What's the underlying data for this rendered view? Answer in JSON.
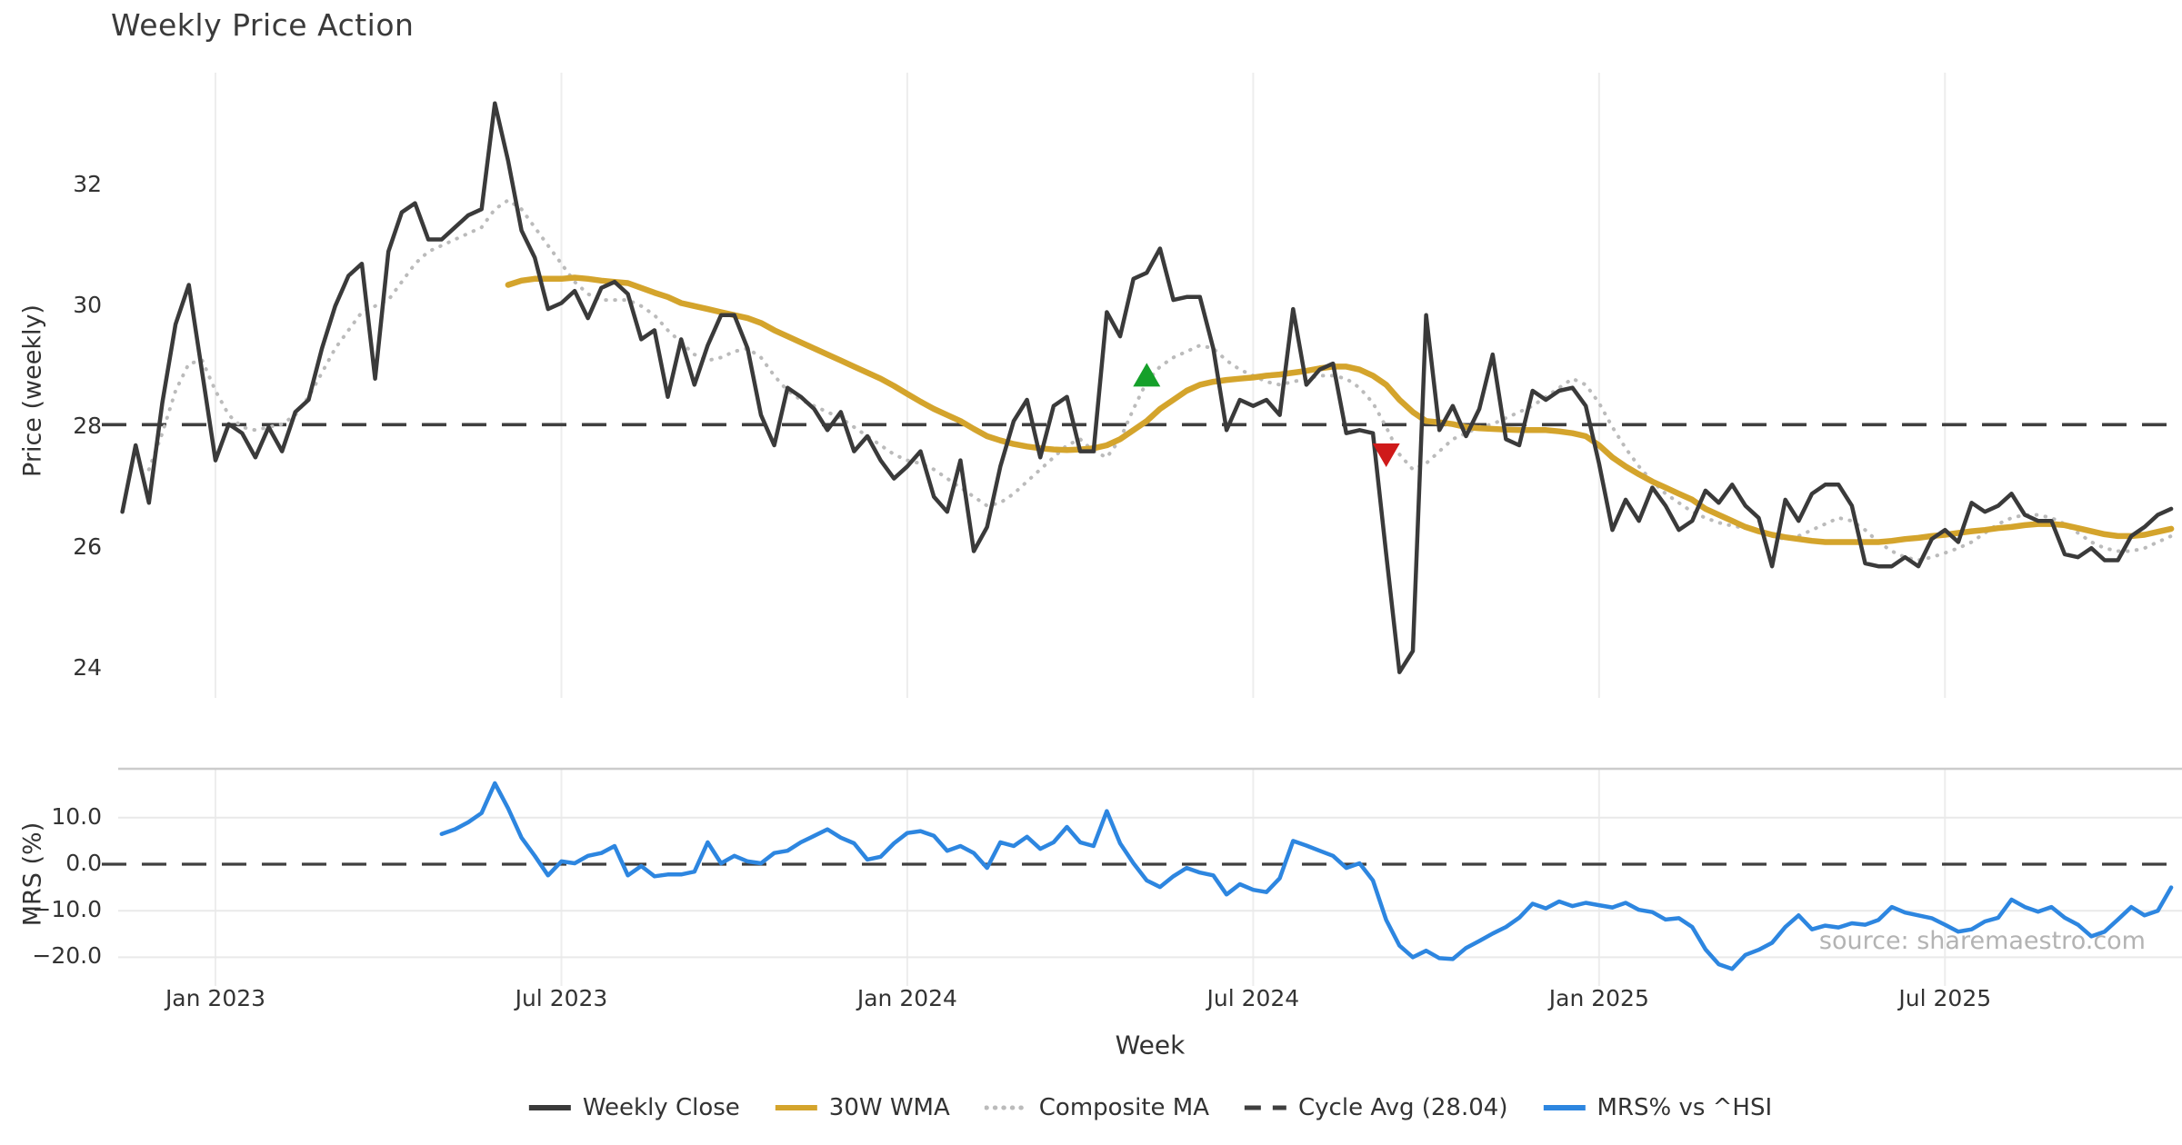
{
  "title": "Weekly Price Action",
  "source_note": "source: sharemaestro.com",
  "axes": {
    "x_label": "Week",
    "price_axis_label": "Price (weekly)",
    "mrs_axis_label": "MRS (%)",
    "price_ticks": [
      {
        "value": 32,
        "label": "32"
      },
      {
        "value": 30,
        "label": "30"
      },
      {
        "value": 28,
        "label": "28"
      },
      {
        "value": 26,
        "label": "26"
      },
      {
        "value": 24,
        "label": "24"
      }
    ],
    "mrs_ticks": [
      {
        "value": 10,
        "label": "10.0"
      },
      {
        "value": 0,
        "label": "0.0"
      },
      {
        "value": -10,
        "label": "−10.0"
      },
      {
        "value": -20,
        "label": "−20.0"
      }
    ],
    "x_ticks": [
      {
        "week": 7,
        "label": "Jan 2023"
      },
      {
        "week": 33,
        "label": "Jul 2023"
      },
      {
        "week": 59,
        "label": "Jan 2024"
      },
      {
        "week": 85,
        "label": "Jul 2024"
      },
      {
        "week": 111,
        "label": "Jan 2025"
      },
      {
        "week": 137,
        "label": "Jul 2025"
      }
    ]
  },
  "legend": {
    "items": [
      {
        "key": "close",
        "label": "Weekly Close"
      },
      {
        "key": "wma",
        "label": "30W WMA"
      },
      {
        "key": "comp",
        "label": "Composite MA"
      },
      {
        "key": "cycle",
        "label": "Cycle Avg (28.04)"
      },
      {
        "key": "mrs",
        "label": "MRS% vs ^HSI"
      }
    ]
  },
  "colors": {
    "weekly_close": "#3a3a3a",
    "wma_30w": "#d4a42c",
    "composite_ma": "#bbbbbb",
    "cycle_avg": "#3f3f3f",
    "mrs": "#2d86e0",
    "marker_buy": "#15a02a",
    "marker_sell": "#cf1a1a",
    "gridline": "#ededed",
    "panel_border": "#cccccc",
    "lower_gridline": "#e9e9e9",
    "tick_text": "#333333",
    "source_text": "#b3b3b3"
  },
  "chart_data": {
    "type": "line",
    "title": "Weekly Price Action",
    "xlabel": "Week",
    "ylabel_top": "Price (weekly)",
    "ylabel_bottom": "MRS (%)",
    "x_unit": "weekly",
    "start_date": "2022-11-14",
    "n_weeks": 155,
    "ylim_price": [
      23.5,
      33.7
    ],
    "ylim_mrs": [
      -26.0,
      20.5
    ],
    "grid": true,
    "legend_position": "bottom",
    "cycle_avg": 28.04,
    "series": [
      {
        "name": "Weekly Close",
        "panel": "price",
        "style": "solid",
        "color": "#3a3a3a",
        "start_week": 0,
        "values": [
          26.6,
          27.7,
          26.75,
          28.4,
          29.7,
          30.35,
          28.9,
          27.45,
          28.05,
          27.9,
          27.5,
          28.0,
          27.6,
          28.25,
          28.45,
          29.3,
          30.0,
          30.5,
          30.7,
          28.8,
          30.9,
          31.55,
          31.7,
          31.1,
          31.1,
          31.3,
          31.5,
          31.6,
          33.35,
          32.4,
          31.25,
          30.8,
          29.95,
          30.05,
          30.25,
          29.8,
          30.3,
          30.4,
          30.2,
          29.45,
          29.6,
          28.5,
          29.45,
          28.7,
          29.35,
          29.85,
          29.85,
          29.3,
          28.2,
          27.7,
          28.65,
          28.5,
          28.3,
          27.95,
          28.25,
          27.6,
          27.85,
          27.45,
          27.15,
          27.35,
          27.6,
          26.85,
          26.6,
          27.45,
          25.95,
          26.35,
          27.35,
          28.1,
          28.45,
          27.5,
          28.35,
          28.5,
          27.6,
          27.6,
          29.9,
          29.5,
          30.45,
          30.55,
          30.95,
          30.1,
          30.15,
          30.15,
          29.3,
          27.95,
          28.45,
          28.35,
          28.45,
          28.2,
          29.95,
          28.7,
          28.95,
          29.05,
          27.9,
          27.95,
          27.9,
          25.9,
          23.95,
          24.3,
          29.85,
          27.95,
          28.35,
          27.85,
          28.3,
          29.2,
          27.8,
          27.7,
          28.6,
          28.45,
          28.6,
          28.65,
          28.35,
          27.4,
          26.3,
          26.8,
          26.45,
          27.0,
          26.7,
          26.3,
          26.45,
          26.95,
          26.75,
          27.05,
          26.7,
          26.5,
          25.7,
          26.8,
          26.45,
          26.9,
          27.05,
          27.05,
          26.7,
          25.75,
          25.7,
          25.7,
          25.85,
          25.7,
          26.15,
          26.3,
          26.1,
          26.75,
          26.6,
          26.7,
          26.9,
          26.55,
          26.45,
          26.45,
          25.9,
          25.85,
          26.0,
          25.8,
          25.8,
          26.2,
          26.35,
          26.55,
          26.65
        ]
      },
      {
        "name": "30W WMA",
        "panel": "price",
        "style": "solid",
        "color": "#d4a42c",
        "start_week": 29,
        "values": [
          30.35,
          30.42,
          30.45,
          30.45,
          30.45,
          30.47,
          30.45,
          30.42,
          30.4,
          30.38,
          30.3,
          30.22,
          30.15,
          30.05,
          30.0,
          29.95,
          29.9,
          29.85,
          29.8,
          29.72,
          29.6,
          29.5,
          29.4,
          29.3,
          29.2,
          29.1,
          29.0,
          28.9,
          28.8,
          28.68,
          28.55,
          28.42,
          28.3,
          28.2,
          28.1,
          27.97,
          27.85,
          27.78,
          27.72,
          27.68,
          27.65,
          27.63,
          27.62,
          27.63,
          27.65,
          27.7,
          27.8,
          27.95,
          28.1,
          28.3,
          28.45,
          28.6,
          28.7,
          28.75,
          28.78,
          28.8,
          28.82,
          28.85,
          28.87,
          28.9,
          28.93,
          28.97,
          29.0,
          29.0,
          28.95,
          28.85,
          28.7,
          28.45,
          28.25,
          28.1,
          28.08,
          28.05,
          28.0,
          27.98,
          27.97,
          27.96,
          27.95,
          27.95,
          27.95,
          27.93,
          27.9,
          27.85,
          27.7,
          27.5,
          27.35,
          27.22,
          27.1,
          27.0,
          26.9,
          26.8,
          26.65,
          26.55,
          26.45,
          26.35,
          26.28,
          26.22,
          26.18,
          26.15,
          26.12,
          26.1,
          26.1,
          26.1,
          26.1,
          26.1,
          26.12,
          26.15,
          26.17,
          26.2,
          26.22,
          26.25,
          26.28,
          26.3,
          26.33,
          26.35,
          26.38,
          26.4,
          26.4,
          26.38,
          26.33,
          26.28,
          26.23,
          26.2,
          26.2,
          26.22,
          26.27,
          26.32
        ]
      },
      {
        "name": "Composite MA",
        "panel": "price",
        "style": "dotted",
        "color": "#bbbbbb",
        "start_week": 2,
        "values": [
          27.3,
          27.9,
          28.6,
          29.05,
          29.1,
          28.6,
          28.2,
          28.0,
          27.95,
          28.0,
          28.05,
          28.2,
          28.5,
          28.9,
          29.3,
          29.6,
          29.9,
          30.0,
          30.1,
          30.4,
          30.7,
          30.9,
          31.0,
          31.1,
          31.2,
          31.3,
          31.6,
          31.75,
          31.6,
          31.3,
          31.0,
          30.7,
          30.4,
          30.2,
          30.1,
          30.1,
          30.1,
          30.0,
          29.85,
          29.6,
          29.4,
          29.2,
          29.1,
          29.15,
          29.25,
          29.3,
          29.15,
          28.85,
          28.6,
          28.45,
          28.35,
          28.25,
          28.15,
          28.0,
          27.85,
          27.7,
          27.55,
          27.45,
          27.4,
          27.3,
          27.15,
          27.0,
          26.85,
          26.7,
          26.75,
          26.9,
          27.1,
          27.3,
          27.5,
          27.7,
          27.8,
          27.6,
          27.5,
          27.8,
          28.3,
          28.75,
          29.0,
          29.15,
          29.25,
          29.35,
          29.3,
          29.1,
          28.95,
          28.85,
          28.75,
          28.7,
          28.75,
          28.8,
          28.85,
          28.85,
          28.8,
          28.65,
          28.4,
          28.0,
          27.55,
          27.3,
          27.4,
          27.6,
          27.8,
          27.9,
          28.0,
          28.05,
          28.15,
          28.25,
          28.35,
          28.5,
          28.65,
          28.8,
          28.7,
          28.4,
          28.0,
          27.65,
          27.35,
          27.1,
          26.9,
          26.75,
          26.6,
          26.5,
          26.42,
          26.37,
          26.33,
          26.28,
          26.2,
          26.15,
          26.2,
          26.3,
          26.4,
          26.5,
          26.45,
          26.3,
          26.1,
          25.95,
          25.85,
          25.8,
          25.85,
          25.92,
          26.0,
          26.1,
          26.25,
          26.4,
          26.5,
          26.55,
          26.55,
          26.5,
          26.4,
          26.25,
          26.1,
          26.0,
          25.95,
          25.95,
          26.0,
          26.1,
          26.2
        ]
      },
      {
        "name": "Cycle Avg (28.04)",
        "panel": "price",
        "style": "dashed",
        "color": "#3f3f3f",
        "constant": 28.04
      },
      {
        "name": "MRS% vs ^HSI",
        "panel": "mrs",
        "style": "solid",
        "color": "#2d86e0",
        "start_week": 24,
        "values": [
          6.5,
          7.5,
          9.0,
          11.0,
          17.4,
          12.0,
          5.7,
          1.8,
          -2.4,
          0.6,
          0.2,
          1.8,
          2.4,
          3.9,
          -2.4,
          -0.4,
          -2.6,
          -2.2,
          -2.2,
          -1.6,
          4.7,
          0.2,
          1.8,
          0.6,
          0.2,
          2.4,
          2.9,
          4.7,
          6.1,
          7.5,
          5.7,
          4.5,
          1.0,
          1.6,
          4.5,
          6.7,
          7.1,
          6.1,
          2.9,
          3.9,
          2.4,
          -0.8,
          4.7,
          3.9,
          5.9,
          3.3,
          4.7,
          8.0,
          4.7,
          3.9,
          11.4,
          4.5,
          0.2,
          -3.5,
          -4.9,
          -2.6,
          -0.8,
          -1.8,
          -2.4,
          -6.5,
          -4.3,
          -5.5,
          -6.0,
          -3.0,
          5.0,
          4.0,
          2.9,
          1.8,
          -0.8,
          0.2,
          -3.5,
          -12.0,
          -17.5,
          -20.0,
          -18.6,
          -20.2,
          -20.4,
          -18.0,
          -16.5,
          -14.9,
          -13.5,
          -11.5,
          -8.5,
          -9.5,
          -8.0,
          -9.0,
          -8.3,
          -8.8,
          -9.3,
          -8.3,
          -9.8,
          -10.3,
          -11.9,
          -11.6,
          -13.5,
          -18.3,
          -21.5,
          -22.5,
          -19.5,
          -18.4,
          -16.9,
          -13.5,
          -11.0,
          -14.0,
          -13.2,
          -13.6,
          -12.7,
          -13.0,
          -12.0,
          -9.2,
          -10.4,
          -11.0,
          -11.6,
          -13.0,
          -14.5,
          -14.0,
          -12.3,
          -11.5,
          -7.6,
          -9.2,
          -10.2,
          -9.2,
          -11.5,
          -13.0,
          -15.5,
          -14.5,
          -11.9,
          -9.2,
          -11.0,
          -10.0,
          -5.0
        ]
      }
    ],
    "markers": [
      {
        "type": "buy-signal",
        "shape": "triangle-up",
        "week": 77,
        "value": 28.85,
        "color": "#15a02a"
      },
      {
        "type": "sell-signal",
        "shape": "triangle-down",
        "week": 95,
        "value": 27.55,
        "color": "#cf1a1a"
      }
    ]
  }
}
